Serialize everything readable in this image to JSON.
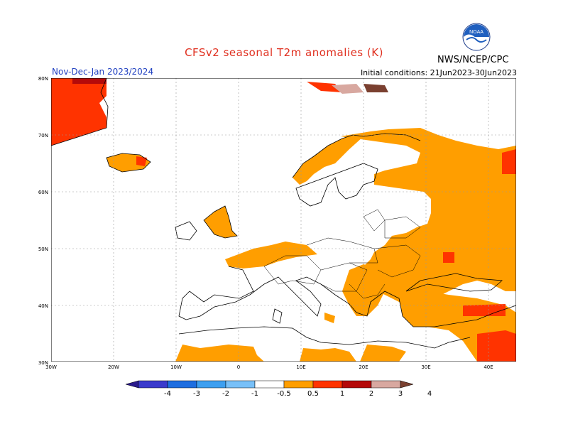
{
  "header": {
    "title": "CFSv2 seasonal T2m anomalies (K)",
    "period": "Nov-Dec-Jan 2023/2024",
    "initial_conditions": "Initial conditions: 21Jun2023-30Jun2023",
    "agency": "NWS/NCEP/CPC",
    "logo_icon": "noaa-logo-icon"
  },
  "map": {
    "region": "Europe",
    "lon_ticks": [
      "30W",
      "20W",
      "10W",
      "0",
      "10E",
      "20E",
      "30E",
      "40E"
    ],
    "lat_ticks": [
      "80N",
      "70N",
      "60N",
      "50N",
      "40N",
      "30N"
    ]
  },
  "colorbar": {
    "labels": [
      "-4",
      "-3",
      "-2",
      "-1",
      "-0.5",
      "0.5",
      "1",
      "2",
      "3",
      "4"
    ],
    "colors": [
      "#2a1a8c",
      "#3a3acc",
      "#1e6ee0",
      "#3d9ff0",
      "#78c0f8",
      "#ffffff",
      "#ff9e00",
      "#ff3300",
      "#b40a0a",
      "#d8a8a0",
      "#7a4030"
    ]
  }
}
